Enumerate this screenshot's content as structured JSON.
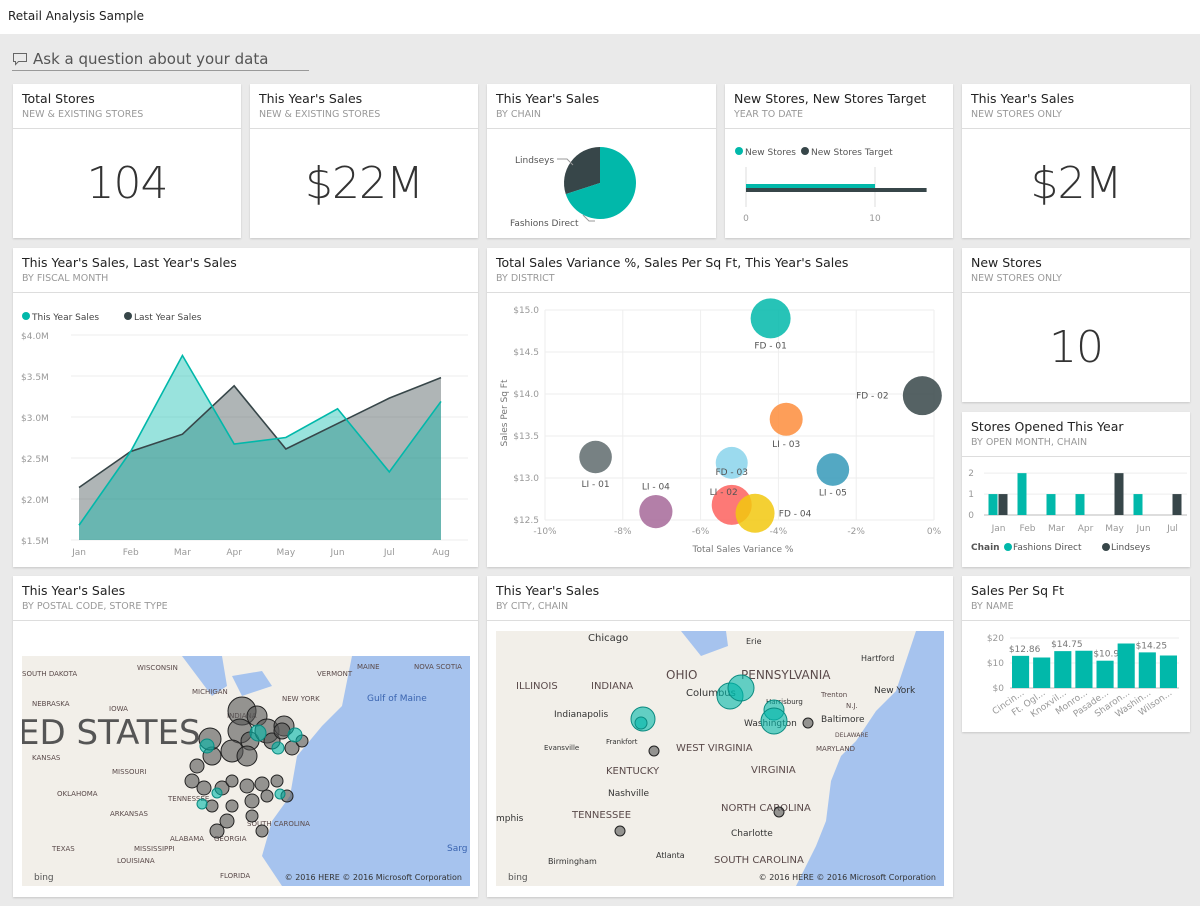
{
  "app": {
    "title": "Retail Analysis Sample",
    "qa_placeholder": "Ask a question about your data"
  },
  "colors": {
    "teal": "#01b8aa",
    "dark": "#374649",
    "accent_bg": "#eaeaea"
  },
  "tiles": {
    "total_stores": {
      "title": "Total Stores",
      "subtitle": "NEW & EXISTING STORES",
      "value": "104"
    },
    "this_year_sales": {
      "title": "This Year's Sales",
      "subtitle": "NEW & EXISTING STORES",
      "value": "$22M"
    },
    "sales_by_chain": {
      "title": "This Year's Sales",
      "subtitle": "BY CHAIN"
    },
    "new_stores_target": {
      "title": "New Stores, New Stores Target",
      "subtitle": "YEAR TO DATE"
    },
    "new_stores_sales": {
      "title": "This Year's Sales",
      "subtitle": "NEW STORES ONLY",
      "value": "$2M"
    },
    "line": {
      "title": "This Year's Sales, Last Year's Sales",
      "subtitle": "BY FISCAL MONTH"
    },
    "scatter": {
      "title": "Total Sales Variance %, Sales Per Sq Ft, This Year's Sales",
      "subtitle": "BY DISTRICT"
    },
    "new_stores": {
      "title": "New Stores",
      "subtitle": "NEW STORES ONLY",
      "value": "10"
    },
    "stores_opened": {
      "title": "Stores Opened This Year",
      "subtitle": "BY OPEN MONTH, CHAIN"
    },
    "map_postal": {
      "title": "This Year's Sales",
      "subtitle": "BY POSTAL CODE, STORE TYPE",
      "labels": [
        "SOUTH DAKOTA",
        "WISCONSIN",
        "MICHIGAN",
        "NEW YORK",
        "VERMONT",
        "MAINE",
        "NOVA SCOTIA",
        "IOWA",
        "NEBRASKA",
        "INDIANA",
        "KANSAS",
        "MISSOURI",
        "OKLAHOMA",
        "TENNESSEE",
        "ARKANSAS",
        "ALABAMA",
        "GEORGIA",
        "SOUTH CAROLINA",
        "TEXAS",
        "MISSISSIPPI",
        "LOUISIANA",
        "FLORIDA",
        "Gulf of Maine",
        "Sarg"
      ],
      "big_label": "ED STATES",
      "brand": "bing",
      "credits": "© 2016 HERE    © 2016 Microsoft Corporation"
    },
    "map_city": {
      "title": "This Year's Sales",
      "subtitle": "BY CITY, CHAIN",
      "labels": [
        "Chicago",
        "Erie",
        "Hartford",
        "OHIO",
        "PENNSYLVANIA",
        "ILLINOIS",
        "INDIANA",
        "Columbus",
        "Harrisburg",
        "Trenton",
        "New York",
        "N.J.",
        "Indianapolis",
        "Washington",
        "Baltimore",
        "DELAWARE",
        "Frankfort",
        "Evansville",
        "WEST VIRGINIA",
        "MARYLAND",
        "KENTUCKY",
        "VIRGINIA",
        "Nashville",
        "NORTH CAROLINA",
        "TENNESSEE",
        "mphis",
        "Charlotte",
        "Atlanta",
        "Birmingham",
        "SOUTH CAROLINA"
      ],
      "brand": "bing",
      "credits": "© 2016 HERE    © 2016 Microsoft Corporation"
    },
    "sales_sqft": {
      "title": "Sales Per Sq Ft",
      "subtitle": "BY NAME"
    }
  },
  "chart_data": [
    {
      "type": "pie",
      "id": "pie",
      "slices": [
        {
          "label": "Lindseys",
          "value": 0.3,
          "color": "#374649"
        },
        {
          "label": "Fashions Direct",
          "value": 0.7,
          "color": "#01b8aa"
        }
      ]
    },
    {
      "type": "bar",
      "id": "target",
      "orientation": "horizontal",
      "series": [
        {
          "name": "New Stores",
          "values": [
            10
          ],
          "color": "#01b8aa"
        },
        {
          "name": "New Stores Target",
          "values": [
            14
          ],
          "color": "#374649"
        }
      ],
      "xticks": [
        "0",
        "10"
      ],
      "xlim": [
        0,
        14.5
      ]
    },
    {
      "type": "area",
      "id": "line",
      "categories": [
        "Jan",
        "Feb",
        "Mar",
        "Apr",
        "May",
        "Jun",
        "Jul",
        "Aug"
      ],
      "series": [
        {
          "name": "This Year Sales",
          "values": [
            1.68,
            2.58,
            3.75,
            2.67,
            2.75,
            3.1,
            2.33,
            3.19
          ],
          "color": "#01b8aa"
        },
        {
          "name": "Last Year Sales",
          "values": [
            2.14,
            2.58,
            2.79,
            3.38,
            2.61,
            2.92,
            3.23,
            3.48
          ],
          "color": "#374649"
        }
      ],
      "yticks": [
        "$1.5M",
        "$2.0M",
        "$2.5M",
        "$3.0M",
        "$3.5M",
        "$4.0M"
      ],
      "ylim": [
        1.5,
        4.0
      ],
      "legend": "top-left",
      "grid": true
    },
    {
      "type": "scatter",
      "id": "scatter",
      "xlabel": "Total Sales Variance %",
      "ylabel": "Sales Per Sq Ft",
      "xlim": [
        -10,
        0
      ],
      "ylim": [
        12.5,
        15
      ],
      "xticks": [
        "-10%",
        "-8%",
        "-6%",
        "-4%",
        "-2%",
        "0%"
      ],
      "yticks": [
        "$12.5",
        "$13.0",
        "$13.5",
        "$14.0",
        "$14.5",
        "$15.0"
      ],
      "grid": true,
      "points": [
        {
          "label": "FD - 01",
          "x": -4.2,
          "y": 14.9,
          "size": 1.0,
          "color": "#01b8aa"
        },
        {
          "label": "FD - 02",
          "x": -0.3,
          "y": 13.98,
          "size": 0.95,
          "color": "#374649"
        },
        {
          "label": "LI - 03",
          "x": -3.8,
          "y": 13.7,
          "size": 0.65,
          "color": "#fd8d3c"
        },
        {
          "label": "LI - 01",
          "x": -8.7,
          "y": 13.25,
          "size": 0.63,
          "color": "#5f6b6d"
        },
        {
          "label": "FD - 03",
          "x": -5.2,
          "y": 13.18,
          "size": 0.6,
          "color": "#8ad4eb"
        },
        {
          "label": "LI - 05",
          "x": -2.6,
          "y": 13.1,
          "size": 0.63,
          "color": "#3599b8"
        },
        {
          "label": "LI - 04",
          "x": -7.15,
          "y": 12.6,
          "size": 0.66,
          "color": "#a66999"
        },
        {
          "label": "LI - 02",
          "x": -5.2,
          "y": 12.68,
          "size": 1.0,
          "color": "#fd625e"
        },
        {
          "label": "FD - 04",
          "x": -4.6,
          "y": 12.58,
          "size": 0.95,
          "color": "#f2c80f"
        }
      ]
    },
    {
      "type": "bar",
      "id": "opened",
      "categories": [
        "Jan",
        "Feb",
        "Mar",
        "Apr",
        "May",
        "Jun",
        "Jul"
      ],
      "legend_title": "Chain",
      "series": [
        {
          "name": "Fashions Direct",
          "values": [
            1,
            2,
            1,
            1,
            0,
            1,
            0
          ],
          "color": "#01b8aa"
        },
        {
          "name": "Lindseys",
          "values": [
            1,
            0,
            0,
            0,
            2,
            0,
            1
          ],
          "color": "#374649"
        }
      ],
      "yticks": [
        "0",
        "1",
        "2"
      ],
      "ylim": [
        0,
        2.3
      ]
    },
    {
      "type": "bar",
      "id": "sqft",
      "categories": [
        "Cincin...",
        "Ft. Ogl...",
        "Knoxvil...",
        "Monro...",
        "Pasade...",
        "Sharon...",
        "Washin...",
        "Wilson..."
      ],
      "values": [
        12.86,
        12.2,
        14.75,
        14.9,
        10.92,
        17.8,
        14.25,
        13.0
      ],
      "data_labels": [
        "$12.86",
        "",
        "$14.75",
        "",
        "$10.92",
        "",
        "$14.25",
        ""
      ],
      "yticks": [
        "$0",
        "$10",
        "$20"
      ],
      "ylim": [
        0,
        20
      ],
      "color": "#01b8aa"
    }
  ]
}
